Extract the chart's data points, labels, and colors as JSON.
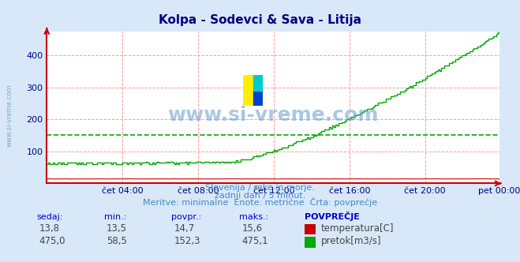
{
  "title": "Kolpa - Sodevci & Sava - Litija",
  "title_color": "#000080",
  "bg_color": "#d8e8f8",
  "plot_bg_color": "#ffffff",
  "grid_color_major": "#ff9999",
  "x_tick_labels": [
    "čet 04:00",
    "čet 08:00",
    "čet 12:00",
    "čet 16:00",
    "čet 20:00",
    "pet 00:00"
  ],
  "x_tick_positions": [
    48,
    96,
    144,
    192,
    240,
    287
  ],
  "ylim": [
    0,
    475
  ],
  "yticks": [
    100,
    200,
    300,
    400
  ],
  "temp_color": "#cc0000",
  "flow_color": "#00aa00",
  "temp_avg": 14.7,
  "flow_avg": 152.3,
  "temp_min": 13.5,
  "temp_max": 15.6,
  "temp_current": 13.8,
  "flow_min": 58.5,
  "flow_max": 475.1,
  "flow_current": 475.0,
  "subtitle1": "Slovenija / reke in morje.",
  "subtitle2": "zadnji dan / 5 minut.",
  "subtitle3": "Meritve: minimalne  Enote: metrične  Črta: povprečje",
  "subtitle_color": "#4488cc",
  "watermark": "www.si-vreme.com",
  "watermark_color": "#6699cc",
  "n_points": 288
}
